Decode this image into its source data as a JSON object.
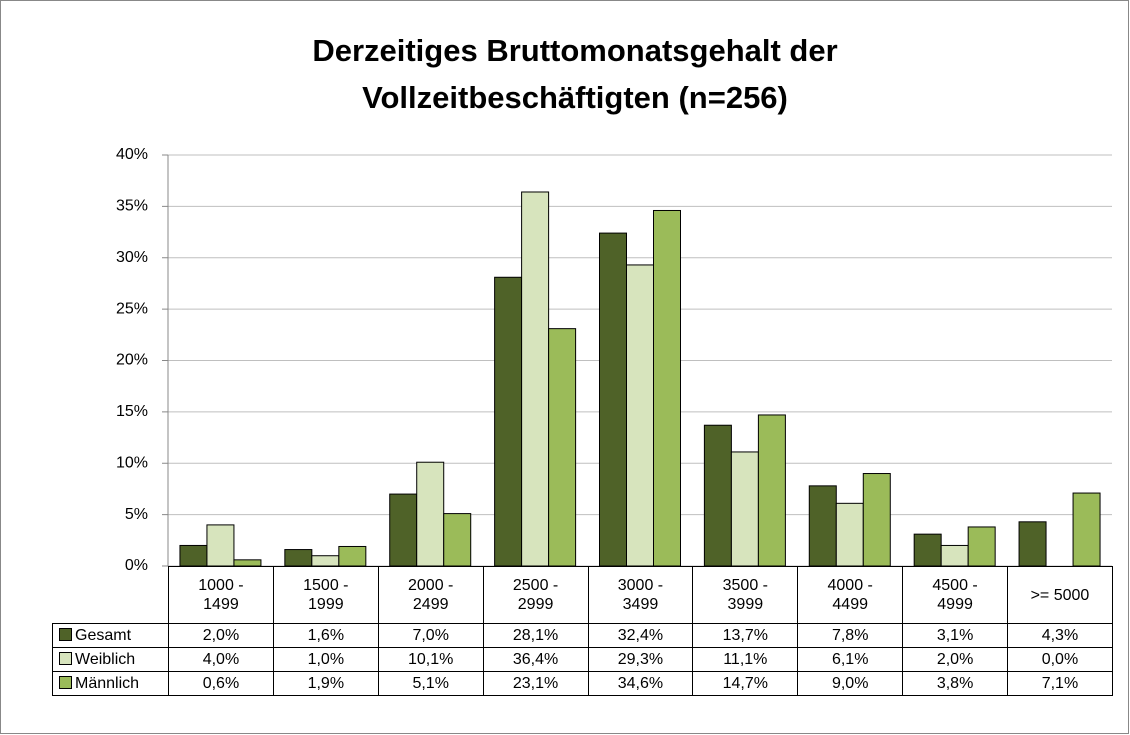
{
  "chart_data": {
    "type": "bar",
    "title": [
      "Derzeitiges Bruttomonatsgehalt der",
      "Vollzeitbeschäftigten (n=256)"
    ],
    "categories": [
      "1000 - 1499",
      "1500 - 1999",
      "2000 - 2499",
      "2500 - 2999",
      "3000 - 3499",
      "3500 - 3999",
      "4000 - 4499",
      "4500 - 4999",
      ">= 5000"
    ],
    "series": [
      {
        "name": "Gesamt",
        "color": "#4f6228",
        "values": [
          2.0,
          1.6,
          7.0,
          28.1,
          32.4,
          13.7,
          7.8,
          3.1,
          4.3
        ],
        "value_labels": [
          "2,0%",
          "1,6%",
          "7,0%",
          "28,1%",
          "32,4%",
          "13,7%",
          "7,8%",
          "3,1%",
          "4,3%"
        ]
      },
      {
        "name": "Weiblich",
        "color": "#d7e4bd",
        "values": [
          4.0,
          1.0,
          10.1,
          36.4,
          29.3,
          11.1,
          6.1,
          2.0,
          0.0
        ],
        "value_labels": [
          "4,0%",
          "1,0%",
          "10,1%",
          "36,4%",
          "29,3%",
          "11,1%",
          "6,1%",
          "2,0%",
          "0,0%"
        ]
      },
      {
        "name": "Männlich",
        "color": "#9bbb59",
        "values": [
          0.6,
          1.9,
          5.1,
          23.1,
          34.6,
          14.7,
          9.0,
          3.8,
          7.1
        ],
        "value_labels": [
          "0,6%",
          "1,9%",
          "5,1%",
          "23,1%",
          "34,6%",
          "14,7%",
          "9,0%",
          "3,8%",
          "7,1%"
        ]
      }
    ],
    "ylim": [
      0,
      40
    ],
    "yticks": [
      {
        "value": 0,
        "label": "0%"
      },
      {
        "value": 5,
        "label": "5%"
      },
      {
        "value": 10,
        "label": "10%"
      },
      {
        "value": 15,
        "label": "15%"
      },
      {
        "value": 20,
        "label": "20%"
      },
      {
        "value": 25,
        "label": "25%"
      },
      {
        "value": 30,
        "label": "30%"
      },
      {
        "value": 35,
        "label": "35%"
      },
      {
        "value": 40,
        "label": "40%"
      }
    ],
    "grid": true
  }
}
